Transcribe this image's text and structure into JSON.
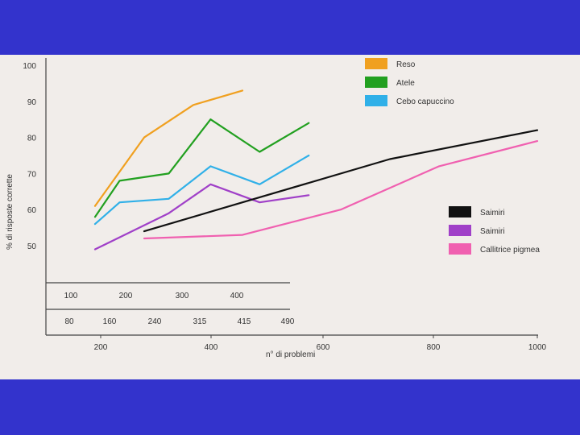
{
  "slide": {
    "background": "#3333cc",
    "photo_background": "#f1edea"
  },
  "chart_data": {
    "type": "line",
    "ylabel": "% di risposte corrette",
    "xlabel": "n° di problemi",
    "ylim": [
      45,
      100
    ],
    "yticks": [
      "100",
      "90",
      "80",
      "70",
      "60",
      "50"
    ],
    "x_axes": [
      {
        "ticks": [
          "100",
          "200",
          "300",
          "400"
        ],
        "applies_to": [
          "Reso",
          "Atele",
          "Cebo capuccino",
          "Saimiri (viola)"
        ]
      },
      {
        "ticks": [
          "80",
          "160",
          "240",
          "315",
          "415",
          "490"
        ]
      },
      {
        "ticks": [
          "200",
          "400",
          "600",
          "800",
          "1000"
        ],
        "label": "n° di problemi",
        "applies_to": [
          "Saimiri (nero)",
          "Callitrice pigmea"
        ]
      }
    ],
    "legend_top": [
      {
        "name": "Reso",
        "color": "#f0a020"
      },
      {
        "name": "Atele",
        "color": "#22a020"
      },
      {
        "name": "Cebo capuccino",
        "color": "#30b0e8"
      }
    ],
    "legend_bottom": [
      {
        "name": "Saimiri",
        "color": "#111111"
      },
      {
        "name": "Saimiri",
        "color": "#a040c8"
      },
      {
        "name": "Callitrice pigmea",
        "color": "#f060b0"
      }
    ],
    "series": [
      {
        "name": "Reso",
        "color": "#f0a020",
        "x": [
          100,
          200,
          300,
          400
        ],
        "y": [
          61,
          80,
          89,
          93
        ]
      },
      {
        "name": "Atele",
        "color": "#22a020",
        "x": [
          100,
          150,
          250,
          335,
          435,
          535
        ],
        "y": [
          58,
          68,
          70,
          85,
          76,
          84
        ]
      },
      {
        "name": "Cebo capuccino",
        "color": "#30b0e8",
        "x": [
          100,
          150,
          250,
          335,
          435,
          535
        ],
        "y": [
          56,
          62,
          63,
          72,
          67,
          75
        ]
      },
      {
        "name": "Saimiri",
        "color": "#a040c8",
        "x": [
          100,
          175,
          250,
          335,
          435,
          535
        ],
        "y": [
          49,
          54,
          59,
          67,
          62,
          64
        ]
      },
      {
        "name": "Saimiri",
        "color": "#111111",
        "x": [
          200,
          400,
          700,
          1000
        ],
        "y": [
          54,
          62,
          74,
          82
        ]
      },
      {
        "name": "Callitrice pigmea",
        "color": "#f060b0",
        "x": [
          200,
          400,
          600,
          800,
          1000
        ],
        "y": [
          52,
          53,
          60,
          72,
          79
        ]
      }
    ]
  }
}
